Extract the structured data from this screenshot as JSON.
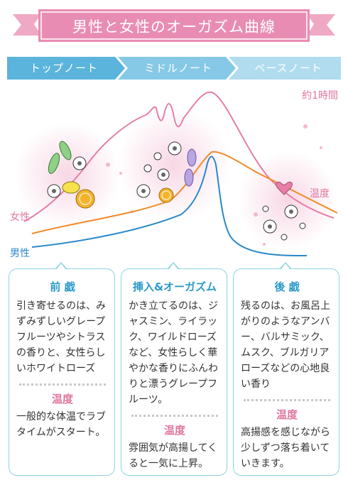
{
  "title": "男性と女性のオーガズム曲線",
  "phases": [
    {
      "label": "トップノート"
    },
    {
      "label": "ミドルノート"
    },
    {
      "label": "ベースノート"
    }
  ],
  "diagram": {
    "duration_label": "約1時間",
    "female_label": "女性",
    "male_label": "男性",
    "temperature_label": "温度",
    "colors": {
      "female": "#e67ea8",
      "male": "#2a88c8",
      "temperature": "#f08a2c"
    }
  },
  "cards": [
    {
      "heading": "前 戯",
      "body": "引き寄せるのは、みずみずしいグレープフルーツやシトラスの香りと、女性らしいホワイトローズ",
      "temp_heading": "温度",
      "temp_body": "一般的な体温でラブタイムがスタート。"
    },
    {
      "heading": "挿入&オーガズム",
      "body": "かき立てるのは、ジャスミン、ライラック、ワイルドローズなど、女性らしく華やかな香りにふんわりと漂うグレープフルーツ。",
      "temp_heading": "温度",
      "temp_body": "雰囲気が高揚してくると一気に上昇。"
    },
    {
      "heading": "後 戯",
      "body": "残るのは、お風呂上がりのようなアンバー、バルサミック、ムスク、ブルガリアローズなどの心地良い香り",
      "temp_heading": "温度",
      "temp_body": "高揚感を感じながら少しずつ落ち着いていきます。"
    }
  ]
}
